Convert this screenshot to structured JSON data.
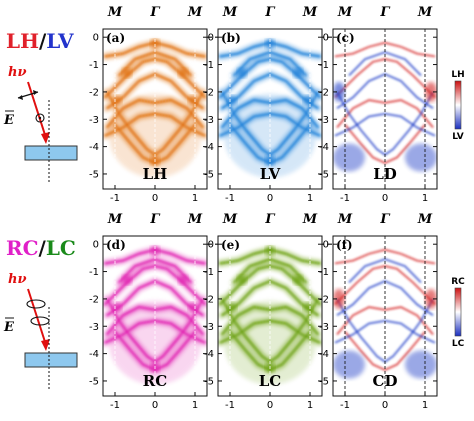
{
  "figure": {
    "row1": {
      "title_parts": [
        {
          "text": "LH",
          "color": "#e0202a"
        },
        {
          "text": "/",
          "color": "#111111"
        },
        {
          "text": "LV",
          "color": "#2233cc"
        }
      ],
      "hv_label": "hν",
      "e_label": "E",
      "panels": [
        {
          "tag": "(a)",
          "name": "LH",
          "map": "orange"
        },
        {
          "tag": "(b)",
          "name": "LV",
          "map": "blue"
        },
        {
          "tag": "(c)",
          "name": "LD",
          "map": "diff"
        }
      ],
      "colorbar": {
        "top_label": "LH",
        "bottom_label": "LV",
        "top_color": "#cc1111",
        "bottom_color": "#1a2fbf"
      }
    },
    "row2": {
      "title_parts": [
        {
          "text": "RC",
          "color": "#e020c8"
        },
        {
          "text": "/",
          "color": "#111111"
        },
        {
          "text": "LC",
          "color": "#1a8a1a"
        }
      ],
      "hv_label": "hν",
      "e_label": "E",
      "panels": [
        {
          "tag": "(d)",
          "name": "RC",
          "map": "magenta"
        },
        {
          "tag": "(e)",
          "name": "LC",
          "map": "green"
        },
        {
          "tag": "(f)",
          "name": "CD",
          "map": "diff"
        }
      ],
      "colorbar": {
        "top_label": "RC",
        "bottom_label": "LC",
        "top_color": "#cc1111",
        "bottom_color": "#1a2fbf"
      }
    },
    "top_symmetry_labels": [
      "M",
      "Γ",
      "M"
    ],
    "x_ticks": [
      "-1",
      "0",
      "1"
    ],
    "y_ticks": [
      "0",
      "-1",
      "-2",
      "-3",
      "-4",
      "-5"
    ]
  },
  "colors": {
    "orange": "#e07010",
    "blue": "#1a7fd8",
    "magenta": "#e020b0",
    "green": "#6aa010",
    "diff_red": "#d42020",
    "diff_blue": "#2040c8",
    "arrow_red": "#e01010",
    "sample_fill": "#8ec8ee"
  }
}
